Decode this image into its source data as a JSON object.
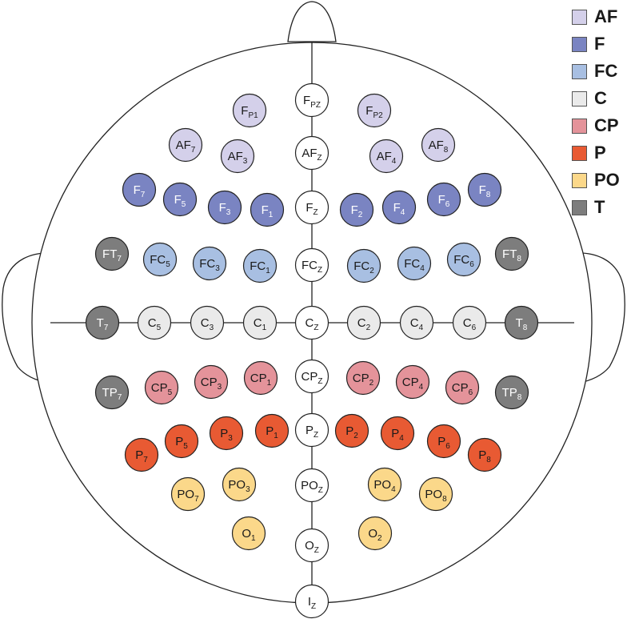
{
  "groups": {
    "AF": {
      "label": "AF",
      "color": "#d4d0ea"
    },
    "F": {
      "label": "F",
      "color": "#7a84c2"
    },
    "FC": {
      "label": "FC",
      "color": "#a8bfe2"
    },
    "C": {
      "label": "C",
      "color": "#eaeaea"
    },
    "CP": {
      "label": "CP",
      "color": "#e4939a"
    },
    "P": {
      "label": "P",
      "color": "#e85a33"
    },
    "PO": {
      "label": "PO",
      "color": "#fbd88a"
    },
    "T": {
      "label": "T",
      "color": "#7d7d7d"
    },
    "Z": {
      "label": "",
      "color": "#ffffff"
    }
  },
  "legend_order": [
    "AF",
    "F",
    "FC",
    "C",
    "CP",
    "P",
    "PO",
    "T"
  ],
  "electrodes": [
    {
      "id": "Fpz",
      "base": "F",
      "sub": "PZ",
      "group": "Z"
    },
    {
      "id": "AFz",
      "base": "AF",
      "sub": "Z",
      "group": "Z"
    },
    {
      "id": "Fz",
      "base": "F",
      "sub": "Z",
      "group": "Z"
    },
    {
      "id": "FCz",
      "base": "FC",
      "sub": "Z",
      "group": "Z"
    },
    {
      "id": "Cz",
      "base": "C",
      "sub": "Z",
      "group": "Z"
    },
    {
      "id": "CPz",
      "base": "CP",
      "sub": "Z",
      "group": "Z"
    },
    {
      "id": "Pz",
      "base": "P",
      "sub": "Z",
      "group": "Z"
    },
    {
      "id": "POz",
      "base": "PO",
      "sub": "Z",
      "group": "Z"
    },
    {
      "id": "Oz",
      "base": "O",
      "sub": "Z",
      "group": "Z"
    },
    {
      "id": "Iz",
      "base": "I",
      "sub": "Z",
      "group": "Z"
    },
    {
      "id": "Fp1",
      "base": "F",
      "sub": "P1",
      "group": "AF"
    },
    {
      "id": "Fp2",
      "base": "F",
      "sub": "P2",
      "group": "AF"
    },
    {
      "id": "AF7",
      "base": "AF",
      "sub": "7",
      "group": "AF"
    },
    {
      "id": "AF3",
      "base": "AF",
      "sub": "3",
      "group": "AF"
    },
    {
      "id": "AF4",
      "base": "AF",
      "sub": "4",
      "group": "AF"
    },
    {
      "id": "AF8",
      "base": "AF",
      "sub": "8",
      "group": "AF"
    },
    {
      "id": "F7",
      "base": "F",
      "sub": "7",
      "group": "F"
    },
    {
      "id": "F5",
      "base": "F",
      "sub": "5",
      "group": "F"
    },
    {
      "id": "F3",
      "base": "F",
      "sub": "3",
      "group": "F"
    },
    {
      "id": "F1",
      "base": "F",
      "sub": "1",
      "group": "F"
    },
    {
      "id": "F2",
      "base": "F",
      "sub": "2",
      "group": "F"
    },
    {
      "id": "F4",
      "base": "F",
      "sub": "4",
      "group": "F"
    },
    {
      "id": "F6",
      "base": "F",
      "sub": "6",
      "group": "F"
    },
    {
      "id": "F8",
      "base": "F",
      "sub": "8",
      "group": "F"
    },
    {
      "id": "FT7",
      "base": "FT",
      "sub": "7",
      "group": "T"
    },
    {
      "id": "FC5",
      "base": "FC",
      "sub": "5",
      "group": "FC"
    },
    {
      "id": "FC3",
      "base": "FC",
      "sub": "3",
      "group": "FC"
    },
    {
      "id": "FC1",
      "base": "FC",
      "sub": "1",
      "group": "FC"
    },
    {
      "id": "FC2",
      "base": "FC",
      "sub": "2",
      "group": "FC"
    },
    {
      "id": "FC4",
      "base": "FC",
      "sub": "4",
      "group": "FC"
    },
    {
      "id": "FC6",
      "base": "FC",
      "sub": "6",
      "group": "FC"
    },
    {
      "id": "FT8",
      "base": "FT",
      "sub": "8",
      "group": "T"
    },
    {
      "id": "T7",
      "base": "T",
      "sub": "7",
      "group": "T"
    },
    {
      "id": "C5",
      "base": "C",
      "sub": "5",
      "group": "C"
    },
    {
      "id": "C3",
      "base": "C",
      "sub": "3",
      "group": "C"
    },
    {
      "id": "C1",
      "base": "C",
      "sub": "1",
      "group": "C"
    },
    {
      "id": "C2",
      "base": "C",
      "sub": "2",
      "group": "C"
    },
    {
      "id": "C4",
      "base": "C",
      "sub": "4",
      "group": "C"
    },
    {
      "id": "C6",
      "base": "C",
      "sub": "6",
      "group": "C"
    },
    {
      "id": "T8",
      "base": "T",
      "sub": "8",
      "group": "T"
    },
    {
      "id": "TP7",
      "base": "TP",
      "sub": "7",
      "group": "T"
    },
    {
      "id": "CP5",
      "base": "CP",
      "sub": "5",
      "group": "CP"
    },
    {
      "id": "CP3",
      "base": "CP",
      "sub": "3",
      "group": "CP"
    },
    {
      "id": "CP1",
      "base": "CP",
      "sub": "1",
      "group": "CP"
    },
    {
      "id": "CP2",
      "base": "CP",
      "sub": "2",
      "group": "CP"
    },
    {
      "id": "CP4",
      "base": "CP",
      "sub": "4",
      "group": "CP"
    },
    {
      "id": "CP6",
      "base": "CP",
      "sub": "6",
      "group": "CP"
    },
    {
      "id": "TP8",
      "base": "TP",
      "sub": "8",
      "group": "T"
    },
    {
      "id": "P7",
      "base": "P",
      "sub": "7",
      "group": "P"
    },
    {
      "id": "P5",
      "base": "P",
      "sub": "5",
      "group": "P"
    },
    {
      "id": "P3",
      "base": "P",
      "sub": "3",
      "group": "P"
    },
    {
      "id": "P1",
      "base": "P",
      "sub": "1",
      "group": "P"
    },
    {
      "id": "P2",
      "base": "P",
      "sub": "2",
      "group": "P"
    },
    {
      "id": "P4",
      "base": "P",
      "sub": "4",
      "group": "P"
    },
    {
      "id": "P6",
      "base": "P",
      "sub": "6",
      "group": "P"
    },
    {
      "id": "P8",
      "base": "P",
      "sub": "8",
      "group": "P"
    },
    {
      "id": "PO7",
      "base": "PO",
      "sub": "7",
      "group": "PO"
    },
    {
      "id": "PO3",
      "base": "PO",
      "sub": "3",
      "group": "PO"
    },
    {
      "id": "PO4",
      "base": "PO",
      "sub": "4",
      "group": "PO"
    },
    {
      "id": "PO8",
      "base": "PO",
      "sub": "8",
      "group": "PO"
    },
    {
      "id": "O1",
      "base": "O",
      "sub": "1",
      "group": "PO"
    },
    {
      "id": "O2",
      "base": "O",
      "sub": "2",
      "group": "PO"
    }
  ]
}
